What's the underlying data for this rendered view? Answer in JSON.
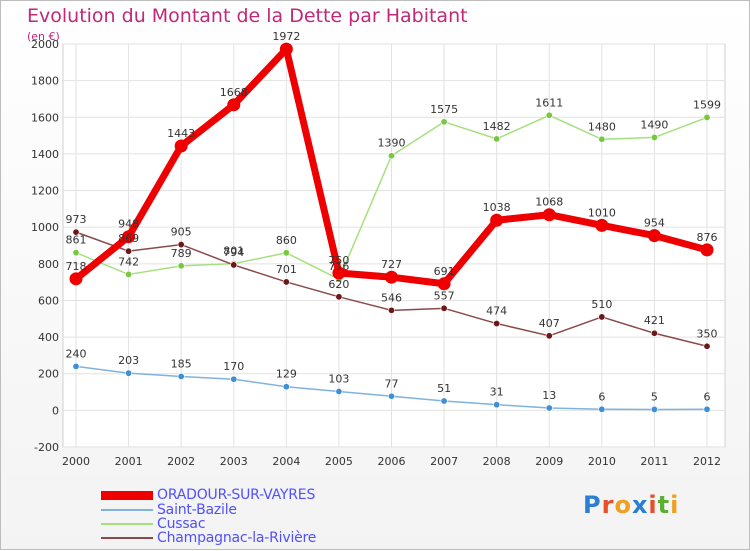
{
  "title": "Evolution du Montant de la Dette par Habitant",
  "unit_label": "(en €)",
  "brand": {
    "text": "Proxiti",
    "letter_colors": [
      "#2a7fd4",
      "#e8502a",
      "#f0a020",
      "#2a7fd4",
      "#e8502a",
      "#5ab030",
      "#f0a020"
    ]
  },
  "chart_data": {
    "type": "line",
    "title": "Evolution du Montant de la Dette par Habitant",
    "ylabel": "(en €)",
    "x": [
      "2000",
      "2001",
      "2002",
      "2003",
      "2004",
      "2005",
      "2006",
      "2007",
      "2008",
      "2009",
      "2010",
      "2011",
      "2012"
    ],
    "ylim": [
      -200,
      2000
    ],
    "yticks": [
      -200,
      0,
      200,
      400,
      600,
      800,
      1000,
      1200,
      1400,
      1600,
      1800,
      2000
    ],
    "grid": true,
    "legend_position": "bottom-left",
    "series": [
      {
        "name": "ORADOUR-SUR-VAYRES",
        "color": "#ee0000",
        "marker_color": "#ee0000",
        "emphasis": true,
        "values": [
          718,
          948,
          1443,
          1668,
          1972,
          750,
          727,
          691,
          1038,
          1068,
          1010,
          954,
          876
        ]
      },
      {
        "name": "Saint-Bazile",
        "color": "#7fb2dd",
        "marker_color": "#3d8fd8",
        "emphasis": false,
        "values": [
          240,
          203,
          185,
          170,
          129,
          103,
          77,
          51,
          31,
          13,
          6,
          5,
          6
        ]
      },
      {
        "name": "Cussac",
        "color": "#a6e07e",
        "marker_color": "#74c93e",
        "emphasis": false,
        "values": [
          861,
          742,
          789,
          801,
          860,
          716,
          1390,
          1575,
          1482,
          1611,
          1480,
          1490,
          1599
        ]
      },
      {
        "name": "Champagnac-la-Rivière",
        "color": "#8a4a4a",
        "marker_color": "#6a1818",
        "emphasis": false,
        "values": [
          973,
          869,
          905,
          794,
          701,
          620,
          546,
          557,
          474,
          407,
          510,
          421,
          350
        ]
      }
    ],
    "data_labels": [
      [
        "718",
        "948",
        "1443",
        "1668",
        "1972",
        "750",
        "727",
        "691",
        "1038",
        "1068",
        "1010",
        "954",
        "876"
      ],
      [
        "240",
        "203",
        "185",
        "170",
        "129",
        "103",
        "77",
        "51",
        "31",
        "13",
        "6",
        "5",
        "6"
      ],
      [
        "861",
        "742",
        "789",
        "801",
        "860",
        "716",
        "1390",
        "1575",
        "1482",
        "1611",
        "1480",
        "1490",
        "1599"
      ],
      [
        "973",
        "869",
        "905",
        "794",
        "701",
        "620",
        "546",
        "557",
        "474",
        "407",
        "510",
        "421",
        "350"
      ]
    ]
  }
}
